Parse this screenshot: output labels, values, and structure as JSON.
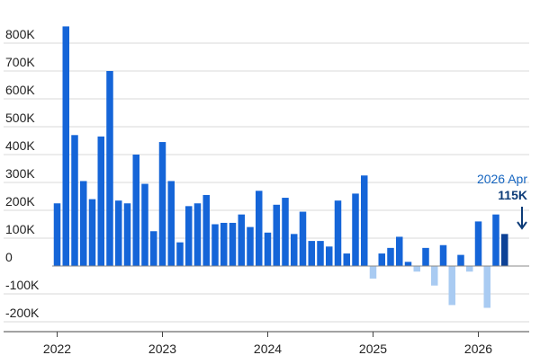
{
  "chart_data": {
    "type": "bar",
    "title": "",
    "xlabel": "",
    "ylabel": "",
    "ylim": [
      -250000,
      860000
    ],
    "yticks": [
      {
        "value": 800000,
        "label": "800K"
      },
      {
        "value": 700000,
        "label": "700K"
      },
      {
        "value": 600000,
        "label": "600K"
      },
      {
        "value": 500000,
        "label": "500K"
      },
      {
        "value": 400000,
        "label": "400K"
      },
      {
        "value": 300000,
        "label": "300K"
      },
      {
        "value": 200000,
        "label": "200K"
      },
      {
        "value": 100000,
        "label": "100K"
      },
      {
        "value": 0,
        "label": "0"
      },
      {
        "value": -100000,
        "label": "-100K"
      },
      {
        "value": -200000,
        "label": "-200K"
      }
    ],
    "xticks": [
      {
        "index": 0,
        "label": "2022"
      },
      {
        "index": 12,
        "label": "2023"
      },
      {
        "index": 24,
        "label": "2024"
      },
      {
        "index": 36,
        "label": "2025"
      },
      {
        "index": 48,
        "label": "2026"
      }
    ],
    "grid": true,
    "categories": [
      "2022 Jan",
      "2022 Feb",
      "2022 Mar",
      "2022 Apr",
      "2022 May",
      "2022 Jun",
      "2022 Jul",
      "2022 Aug",
      "2022 Sep",
      "2022 Oct",
      "2022 Nov",
      "2022 Dec",
      "2023 Jan",
      "2023 Feb",
      "2023 Mar",
      "2023 Apr",
      "2023 May",
      "2023 Jun",
      "2023 Jul",
      "2023 Aug",
      "2023 Sep",
      "2023 Oct",
      "2023 Nov",
      "2023 Dec",
      "2024 Jan",
      "2024 Feb",
      "2024 Mar",
      "2024 Apr",
      "2024 May",
      "2024 Jun",
      "2024 Jul",
      "2024 Aug",
      "2024 Sep",
      "2024 Oct",
      "2024 Nov",
      "2024 Dec",
      "2025 Jan",
      "2025 Feb",
      "2025 Mar",
      "2025 Apr",
      "2025 May",
      "2025 Jun",
      "2025 Jul",
      "2025 Aug",
      "2025 Sep",
      "2025 Oct",
      "2025 Nov",
      "2025 Dec",
      "2026 Jan",
      "2026 Feb",
      "2026 Mar",
      "2026 Apr"
    ],
    "values": [
      225000,
      860000,
      470000,
      305000,
      240000,
      465000,
      700000,
      235000,
      225000,
      400000,
      295000,
      125000,
      445000,
      305000,
      85000,
      215000,
      225000,
      255000,
      150000,
      155000,
      155000,
      185000,
      140000,
      270000,
      120000,
      220000,
      245000,
      115000,
      195000,
      90000,
      90000,
      70000,
      235000,
      45000,
      260000,
      325000,
      -45000,
      45000,
      65000,
      105000,
      15000,
      -20000,
      65000,
      -70000,
      75000,
      -140000,
      40000,
      -20000,
      160000,
      -150000,
      185000,
      115000
    ],
    "colors": {
      "positive": "#1565d8",
      "negative": "#a9cbf2",
      "latest": "#0e4296",
      "grid": "#d9d9d9",
      "zero_line": "#888888"
    },
    "annotation": {
      "date_label": "2026 Apr",
      "value_label": "115K",
      "index": 51
    }
  }
}
